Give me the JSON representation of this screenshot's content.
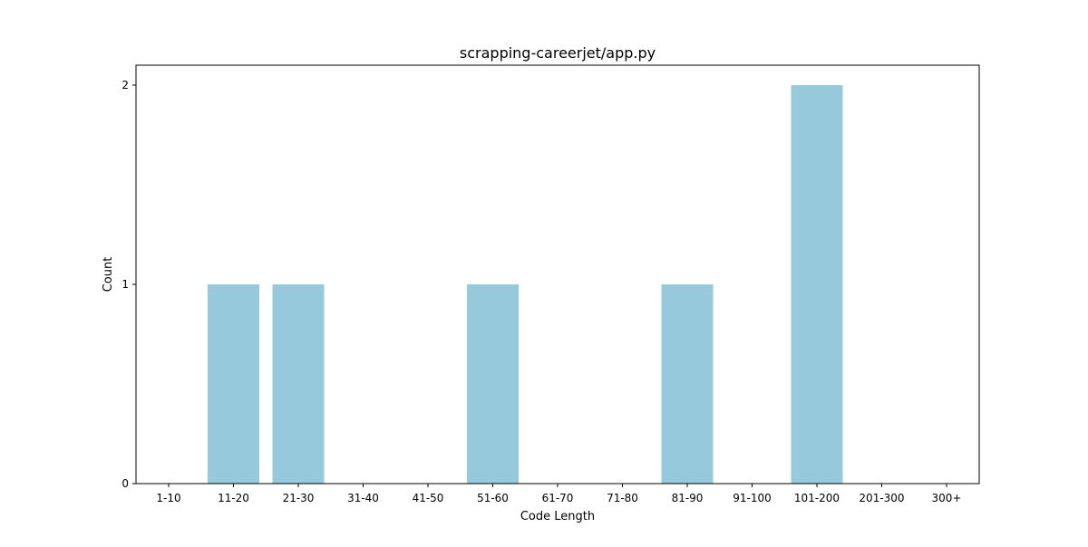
{
  "chart_data": {
    "type": "bar",
    "title": "scrapping-careerjet/app.py",
    "xlabel": "Code Length",
    "ylabel": "Count",
    "categories": [
      "1-10",
      "11-20",
      "21-30",
      "31-40",
      "41-50",
      "51-60",
      "61-70",
      "71-80",
      "81-90",
      "91-100",
      "101-200",
      "201-300",
      "300+"
    ],
    "values": [
      0,
      1,
      1,
      0,
      0,
      1,
      0,
      0,
      1,
      0,
      2,
      0,
      0
    ],
    "yticks": [
      0,
      1,
      2
    ],
    "ylim": [
      0,
      2.1
    ],
    "grid": false,
    "legend": "none",
    "bar_color": "#96c9dc"
  }
}
